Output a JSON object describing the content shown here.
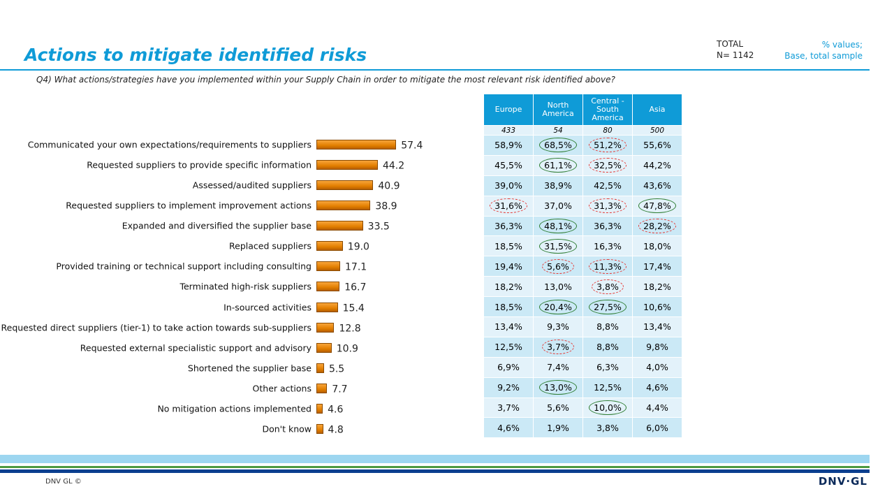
{
  "header": {
    "title": "Actions to mitigate identified risks",
    "total_label": "TOTAL",
    "n_label": "N= 1142",
    "base_line1": "% values;",
    "base_line2": "Base, total sample",
    "question": "Q4) What actions/strategies have you implemented within your Supply Chain in order to mitigate the most relevant risk identified above?"
  },
  "chart_data": {
    "type": "bar",
    "orientation": "horizontal",
    "categories": [
      "Communicated your own expectations/requirements to suppliers",
      "Requested suppliers to provide specific information",
      "Assessed/audited suppliers",
      "Requested suppliers to implement improvement actions",
      "Expanded and diversified the supplier base",
      "Replaced suppliers",
      "Provided training or technical support including consulting",
      "Terminated high-risk suppliers",
      "In-sourced activities",
      "Requested direct suppliers (tier-1) to take action towards sub-suppliers",
      "Requested external specialistic support and advisory",
      "Shortened the supplier base",
      "Other actions",
      "No mitigation actions implemented",
      "Don't know"
    ],
    "values": [
      57.4,
      44.2,
      40.9,
      38.9,
      33.5,
      19.0,
      17.1,
      16.7,
      15.4,
      12.8,
      10.9,
      5.5,
      7.7,
      4.6,
      4.8
    ],
    "value_labels": [
      "57.4",
      "44.2",
      "40.9",
      "38.9",
      "33.5",
      "19.0",
      "17.1",
      "16.7",
      "15.4",
      "12.8",
      "10.9",
      "5.5",
      "7.7",
      "4.6",
      "4.8"
    ],
    "bar_color": "#e8840a"
  },
  "table": {
    "columns": [
      "Europe",
      "North America",
      "Central - South America",
      "Asia"
    ],
    "n": [
      "433",
      "54",
      "80",
      "500"
    ],
    "rows": [
      [
        "58,9%",
        "68,5%",
        "51,2%",
        "55,6%"
      ],
      [
        "45,5%",
        "61,1%",
        "32,5%",
        "44,2%"
      ],
      [
        "39,0%",
        "38,9%",
        "42,5%",
        "43,6%"
      ],
      [
        "31,6%",
        "37,0%",
        "31,3%",
        "47,8%"
      ],
      [
        "36,3%",
        "48,1%",
        "36,3%",
        "28,2%"
      ],
      [
        "18,5%",
        "31,5%",
        "16,3%",
        "18,0%"
      ],
      [
        "19,4%",
        "5,6%",
        "11,3%",
        "17,4%"
      ],
      [
        "18,2%",
        "13,0%",
        "3,8%",
        "18,2%"
      ],
      [
        "18,5%",
        "20,4%",
        "27,5%",
        "10,6%"
      ],
      [
        "13,4%",
        "9,3%",
        "8,8%",
        "13,4%"
      ],
      [
        "12,5%",
        "3,7%",
        "8,8%",
        "9,8%"
      ],
      [
        "6,9%",
        "7,4%",
        "6,3%",
        "4,0%"
      ],
      [
        "9,2%",
        "13,0%",
        "12,5%",
        "4,6%"
      ],
      [
        "3,7%",
        "5,6%",
        "10,0%",
        "4,4%"
      ],
      [
        "4,6%",
        "1,9%",
        "3,8%",
        "6,0%"
      ]
    ],
    "marks": [
      [
        "",
        "higher",
        "lower",
        ""
      ],
      [
        "",
        "higher",
        "lower",
        ""
      ],
      [
        "",
        "",
        "",
        ""
      ],
      [
        "lower",
        "",
        "lower",
        "higher"
      ],
      [
        "",
        "higher",
        "",
        "lower"
      ],
      [
        "",
        "higher",
        "",
        ""
      ],
      [
        "",
        "lower",
        "lower",
        ""
      ],
      [
        "",
        "",
        "lower",
        ""
      ],
      [
        "",
        "higher",
        "higher",
        ""
      ],
      [
        "",
        "",
        "",
        ""
      ],
      [
        "",
        "lower",
        "",
        ""
      ],
      [
        "",
        "",
        "",
        ""
      ],
      [
        "",
        "higher",
        "",
        ""
      ],
      [
        "",
        "",
        "higher",
        ""
      ],
      [
        "",
        "",
        "",
        ""
      ]
    ],
    "mark_colors": {
      "higher": "#2e7d32",
      "lower": "#e53935"
    }
  },
  "footer": {
    "copyright": "DNV GL ©",
    "logo": "DNV·GL"
  }
}
